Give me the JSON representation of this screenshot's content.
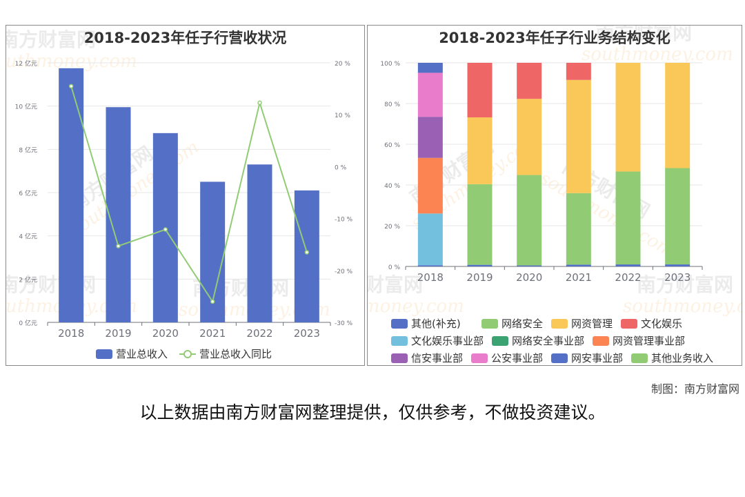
{
  "credit": "制图：南方财富网",
  "disclaimer": "以上数据由南方财富网整理提供，仅供参考，不做投资建议。",
  "watermark": {
    "brand": "南方财富网",
    "url": "southmoney.com"
  },
  "chart_data": [
    {
      "type": "bar",
      "title": "2018-2023年任子行营收状况",
      "categories": [
        "2018",
        "2019",
        "2020",
        "2021",
        "2022",
        "2023"
      ],
      "y_ticks": [
        "0 亿元",
        "2 亿元",
        "4 亿元",
        "6 亿元",
        "8 亿元",
        "10 亿元",
        "12 亿元"
      ],
      "y2_ticks": [
        "-30 %",
        "-20 %",
        "-10 %",
        "0 %",
        "10 %",
        "20 %"
      ],
      "ylim": [
        0,
        12
      ],
      "y2lim": [
        -30,
        20
      ],
      "series": [
        {
          "name": "营业总收入",
          "type": "bar",
          "axis": "left",
          "color": "#5470c6",
          "values": [
            11.75,
            9.95,
            8.75,
            6.5,
            7.3,
            6.1
          ]
        },
        {
          "name": "营业总收入同比",
          "type": "line",
          "axis": "right",
          "color": "#91cc75",
          "values": [
            15.5,
            -15.3,
            -12.1,
            -26.0,
            12.3,
            -16.5
          ]
        }
      ],
      "legend": "bottom"
    },
    {
      "type": "bar",
      "stacked": true,
      "title": "2018-2023年任子行业务结构变化",
      "categories": [
        "2018",
        "2019",
        "2020",
        "2021",
        "2022",
        "2023"
      ],
      "y_ticks": [
        "0 %",
        "20 %",
        "40 %",
        "60 %",
        "80 %",
        "100 %"
      ],
      "ylim": [
        0,
        100
      ],
      "series": [
        {
          "name": "其他(补充)",
          "color": "#5470c6",
          "values": [
            0.6,
            0.8,
            0.5,
            0.9,
            1.0,
            1.0
          ]
        },
        {
          "name": "网络安全",
          "color": "#91cc75",
          "values": [
            0,
            39.6,
            44.4,
            35.1,
            45.6,
            47.3
          ]
        },
        {
          "name": "网资管理",
          "color": "#fac858",
          "values": [
            0,
            32.8,
            37.4,
            55.6,
            53.4,
            51.7
          ]
        },
        {
          "name": "文化娱乐",
          "color": "#ee6666",
          "values": [
            0,
            26.8,
            17.7,
            8.4,
            0,
            0
          ]
        },
        {
          "name": "文化娱乐事业部",
          "color": "#73c0de",
          "values": [
            25.4,
            0,
            0,
            0,
            0,
            0
          ]
        },
        {
          "name": "网络安全事业部",
          "color": "#3ba272",
          "values": [
            0,
            0,
            0,
            0,
            0,
            0
          ]
        },
        {
          "name": "网资管理事业部",
          "color": "#fc8452",
          "values": [
            27.3,
            0,
            0,
            0,
            0,
            0
          ]
        },
        {
          "name": "信安事业部",
          "color": "#9a60b4",
          "values": [
            20.2,
            0,
            0,
            0,
            0,
            0
          ]
        },
        {
          "name": "公安事业部",
          "color": "#ea7ccc",
          "values": [
            21.6,
            0,
            0,
            0,
            0,
            0
          ]
        },
        {
          "name": "网安事业部",
          "color": "#5470c6",
          "values": [
            4.9,
            0,
            0,
            0,
            0,
            0
          ]
        },
        {
          "name": "其他业务收入",
          "color": "#91cc75",
          "values": [
            0,
            0,
            0,
            0,
            0,
            0
          ]
        }
      ],
      "legend": "bottom"
    }
  ]
}
